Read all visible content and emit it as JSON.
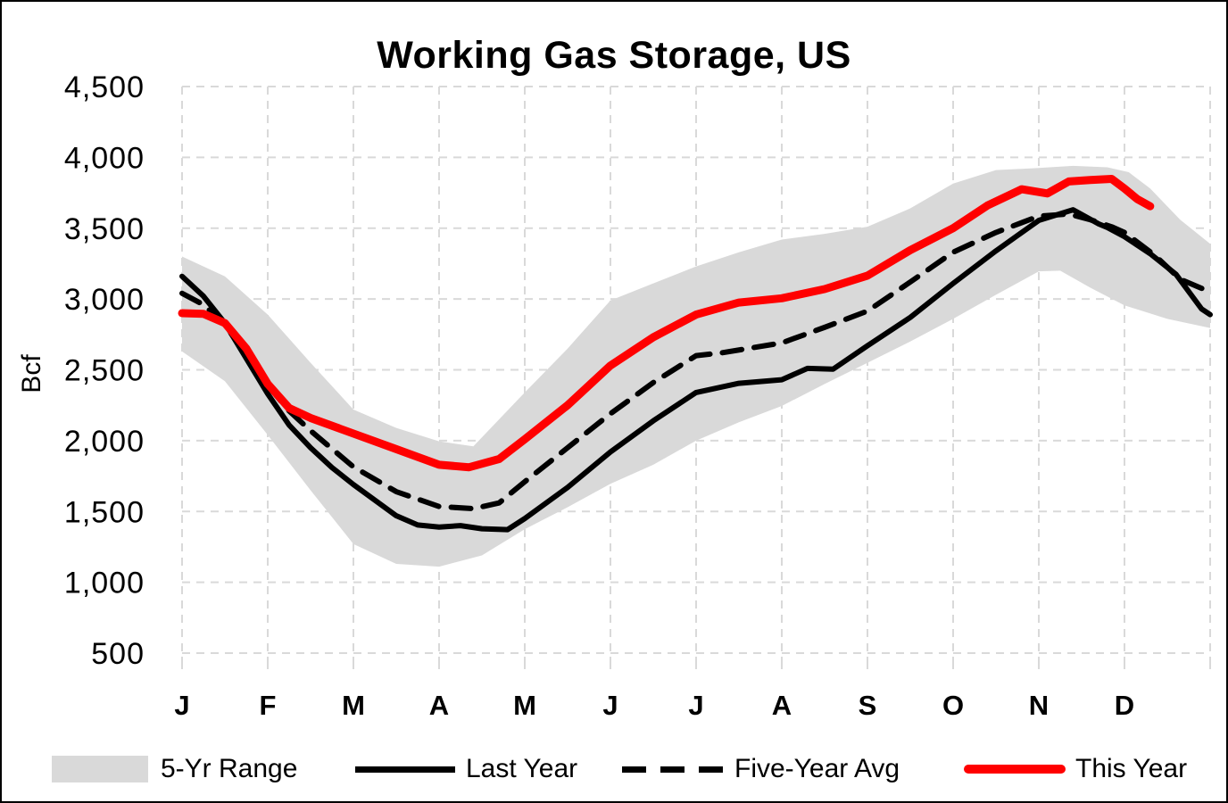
{
  "title": "Working Gas Storage, US",
  "y_axis": {
    "label": "Bcf",
    "tick_values": [
      4500,
      4000,
      3500,
      3000,
      2500,
      2000,
      1500,
      1000,
      500
    ],
    "tick_labels": [
      "4,500",
      "4,000",
      "3,500",
      "3,000",
      "2,500",
      "2,000",
      "1,500",
      "1,000",
      "500"
    ]
  },
  "x_axis": {
    "tick_labels": [
      "J",
      "F",
      "M",
      "A",
      "M",
      "J",
      "J",
      "A",
      "S",
      "O",
      "N",
      "D"
    ]
  },
  "legend": {
    "items": [
      {
        "label": "5-Yr Range",
        "swatch": "band",
        "color": "#d9d9d9"
      },
      {
        "label": "Last Year",
        "swatch": "solid-line",
        "color": "#000000"
      },
      {
        "label": "Five-Year Avg",
        "swatch": "dashed-line",
        "color": "#000000"
      },
      {
        "label": "This Year",
        "swatch": "solid-line",
        "color": "#ff0000"
      }
    ]
  },
  "chart_data": {
    "type": "line",
    "title": "Working Gas Storage, US",
    "ylabel": "Bcf",
    "ylim": [
      500,
      4500
    ],
    "xlim_months": [
      0,
      12
    ],
    "x_unit": "months (0 = Jan 1, 12 = Dec 31), values in Bcf",
    "grid": "dashed light-gray horizontal and vertical",
    "band": {
      "name": "5-Yr Range",
      "fill": "#d9d9d9",
      "top_points": [
        [
          0,
          3300
        ],
        [
          0.5,
          3160
        ],
        [
          1,
          2890
        ],
        [
          1.5,
          2550
        ],
        [
          2,
          2220
        ],
        [
          2.5,
          2090
        ],
        [
          3,
          1995
        ],
        [
          3.4,
          1960
        ],
        [
          4,
          2340
        ],
        [
          4.5,
          2650
        ],
        [
          5,
          2990
        ],
        [
          5.5,
          3110
        ],
        [
          6,
          3230
        ],
        [
          6.5,
          3330
        ],
        [
          7,
          3420
        ],
        [
          7.5,
          3460
        ],
        [
          8,
          3510
        ],
        [
          8.5,
          3640
        ],
        [
          9,
          3815
        ],
        [
          9.5,
          3910
        ],
        [
          10,
          3925
        ],
        [
          10.4,
          3940
        ],
        [
          10.8,
          3930
        ],
        [
          11.05,
          3895
        ],
        [
          11.3,
          3780
        ],
        [
          11.65,
          3560
        ],
        [
          12,
          3390
        ]
      ],
      "bottom_points": [
        [
          0,
          2630
        ],
        [
          0.5,
          2420
        ],
        [
          1,
          2040
        ],
        [
          1.5,
          1650
        ],
        [
          2,
          1270
        ],
        [
          2.5,
          1130
        ],
        [
          3,
          1110
        ],
        [
          3.5,
          1190
        ],
        [
          4,
          1375
        ],
        [
          4.5,
          1530
        ],
        [
          5,
          1695
        ],
        [
          5.5,
          1830
        ],
        [
          6,
          2000
        ],
        [
          6.5,
          2130
        ],
        [
          7,
          2245
        ],
        [
          7.5,
          2400
        ],
        [
          8,
          2550
        ],
        [
          8.5,
          2700
        ],
        [
          9,
          2860
        ],
        [
          9.5,
          3030
        ],
        [
          10,
          3195
        ],
        [
          10.25,
          3200
        ],
        [
          10.6,
          3080
        ],
        [
          11,
          2955
        ],
        [
          11.5,
          2860
        ],
        [
          12,
          2795
        ]
      ]
    },
    "series": [
      {
        "name": "Last Year",
        "style": "solid",
        "color": "#000000",
        "stroke_width": 6,
        "points": [
          [
            0,
            3160
          ],
          [
            0.25,
            3020
          ],
          [
            0.5,
            2830
          ],
          [
            0.75,
            2580
          ],
          [
            1,
            2330
          ],
          [
            1.25,
            2110
          ],
          [
            1.5,
            1950
          ],
          [
            1.75,
            1810
          ],
          [
            2,
            1690
          ],
          [
            2.5,
            1470
          ],
          [
            2.75,
            1405
          ],
          [
            3,
            1390
          ],
          [
            3.25,
            1400
          ],
          [
            3.5,
            1378
          ],
          [
            3.8,
            1372
          ],
          [
            4,
            1450
          ],
          [
            4.5,
            1670
          ],
          [
            5,
            1920
          ],
          [
            5.5,
            2140
          ],
          [
            6,
            2340
          ],
          [
            6.5,
            2405
          ],
          [
            7,
            2430
          ],
          [
            7.3,
            2510
          ],
          [
            7.6,
            2505
          ],
          [
            8,
            2670
          ],
          [
            8.5,
            2870
          ],
          [
            9,
            3110
          ],
          [
            9.5,
            3340
          ],
          [
            10,
            3555
          ],
          [
            10.4,
            3630
          ],
          [
            10.7,
            3530
          ],
          [
            10.8,
            3505
          ],
          [
            11,
            3440
          ],
          [
            11.3,
            3320
          ],
          [
            11.6,
            3175
          ],
          [
            11.9,
            2930
          ],
          [
            12,
            2890
          ]
        ]
      },
      {
        "name": "Five-Year Avg",
        "style": "dashed",
        "color": "#000000",
        "stroke_width": 6,
        "points": [
          [
            0,
            3040
          ],
          [
            0.25,
            2960
          ],
          [
            0.5,
            2820
          ],
          [
            0.75,
            2600
          ],
          [
            1,
            2390
          ],
          [
            1.25,
            2210
          ],
          [
            1.5,
            2070
          ],
          [
            2,
            1815
          ],
          [
            2.5,
            1640
          ],
          [
            3,
            1535
          ],
          [
            3.4,
            1520
          ],
          [
            3.7,
            1560
          ],
          [
            4,
            1710
          ],
          [
            4.5,
            1950
          ],
          [
            5,
            2190
          ],
          [
            5.5,
            2410
          ],
          [
            6,
            2600
          ],
          [
            6.3,
            2620
          ],
          [
            7,
            2690
          ],
          [
            7.5,
            2800
          ],
          [
            8,
            2915
          ],
          [
            8.5,
            3120
          ],
          [
            9,
            3330
          ],
          [
            9.5,
            3470
          ],
          [
            10,
            3585
          ],
          [
            10.35,
            3600
          ],
          [
            10.6,
            3560
          ],
          [
            10.85,
            3510
          ],
          [
            11,
            3470
          ],
          [
            11.35,
            3310
          ],
          [
            11.65,
            3140
          ],
          [
            12,
            3050
          ]
        ]
      },
      {
        "name": "This Year",
        "style": "solid",
        "color": "#ff0000",
        "stroke_width": 9,
        "points": [
          [
            0,
            2900
          ],
          [
            0.25,
            2895
          ],
          [
            0.5,
            2830
          ],
          [
            0.75,
            2650
          ],
          [
            1,
            2400
          ],
          [
            1.25,
            2230
          ],
          [
            1.5,
            2160
          ],
          [
            2,
            2050
          ],
          [
            2.5,
            1940
          ],
          [
            3,
            1830
          ],
          [
            3.35,
            1812
          ],
          [
            3.7,
            1870
          ],
          [
            4,
            2010
          ],
          [
            4.5,
            2250
          ],
          [
            5,
            2530
          ],
          [
            5.5,
            2730
          ],
          [
            6,
            2890
          ],
          [
            6.5,
            2975
          ],
          [
            7,
            3005
          ],
          [
            7.5,
            3070
          ],
          [
            8,
            3165
          ],
          [
            8.5,
            3345
          ],
          [
            9,
            3500
          ],
          [
            9.4,
            3660
          ],
          [
            9.8,
            3775
          ],
          [
            10.1,
            3745
          ],
          [
            10.35,
            3830
          ],
          [
            10.6,
            3840
          ],
          [
            10.85,
            3848
          ],
          [
            11,
            3780
          ],
          [
            11.15,
            3705
          ],
          [
            11.3,
            3655
          ]
        ]
      }
    ]
  }
}
